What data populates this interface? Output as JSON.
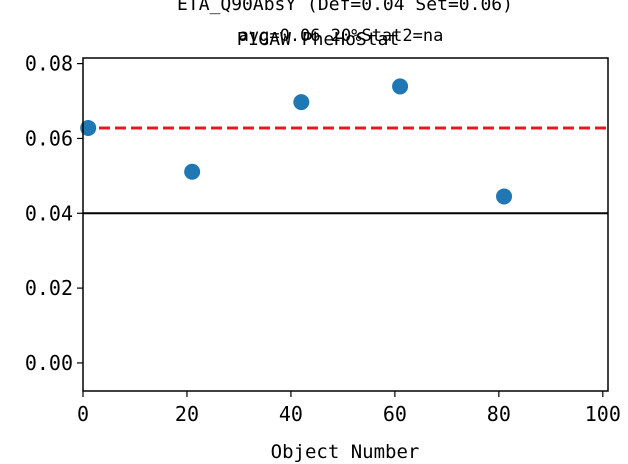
{
  "chart_data": {
    "type": "scatter",
    "title_lines": [
      "ETA_Q90AbsY (Def=0.04 Set=0.06)",
      "P1GAW PheHoStat",
      "avg=0.06 20%Stat2=na"
    ],
    "xlabel": "Object Number",
    "ylabel": "",
    "xlim": [
      0,
      101
    ],
    "ylim": [
      -0.0075,
      0.0815
    ],
    "xticks": [
      0,
      20,
      40,
      60,
      80,
      100
    ],
    "xtick_labels": [
      "0",
      "20",
      "40",
      "60",
      "80",
      "100"
    ],
    "yticks": [
      0.0,
      0.02,
      0.04,
      0.06,
      0.08
    ],
    "ytick_labels": [
      "0.00",
      "0.02",
      "0.04",
      "0.06",
      "0.08"
    ],
    "grid": false,
    "series": [
      {
        "x": [
          1,
          21,
          42,
          61,
          81
        ],
        "y": [
          0.0628,
          0.0511,
          0.0697,
          0.0739,
          0.0445
        ],
        "color": "#1f77b4"
      }
    ],
    "reference_lines": [
      {
        "y": 0.0628,
        "style": "dashed",
        "color": "#e41a1c"
      },
      {
        "y": 0.04,
        "style": "solid",
        "color": "#000000"
      }
    ]
  }
}
